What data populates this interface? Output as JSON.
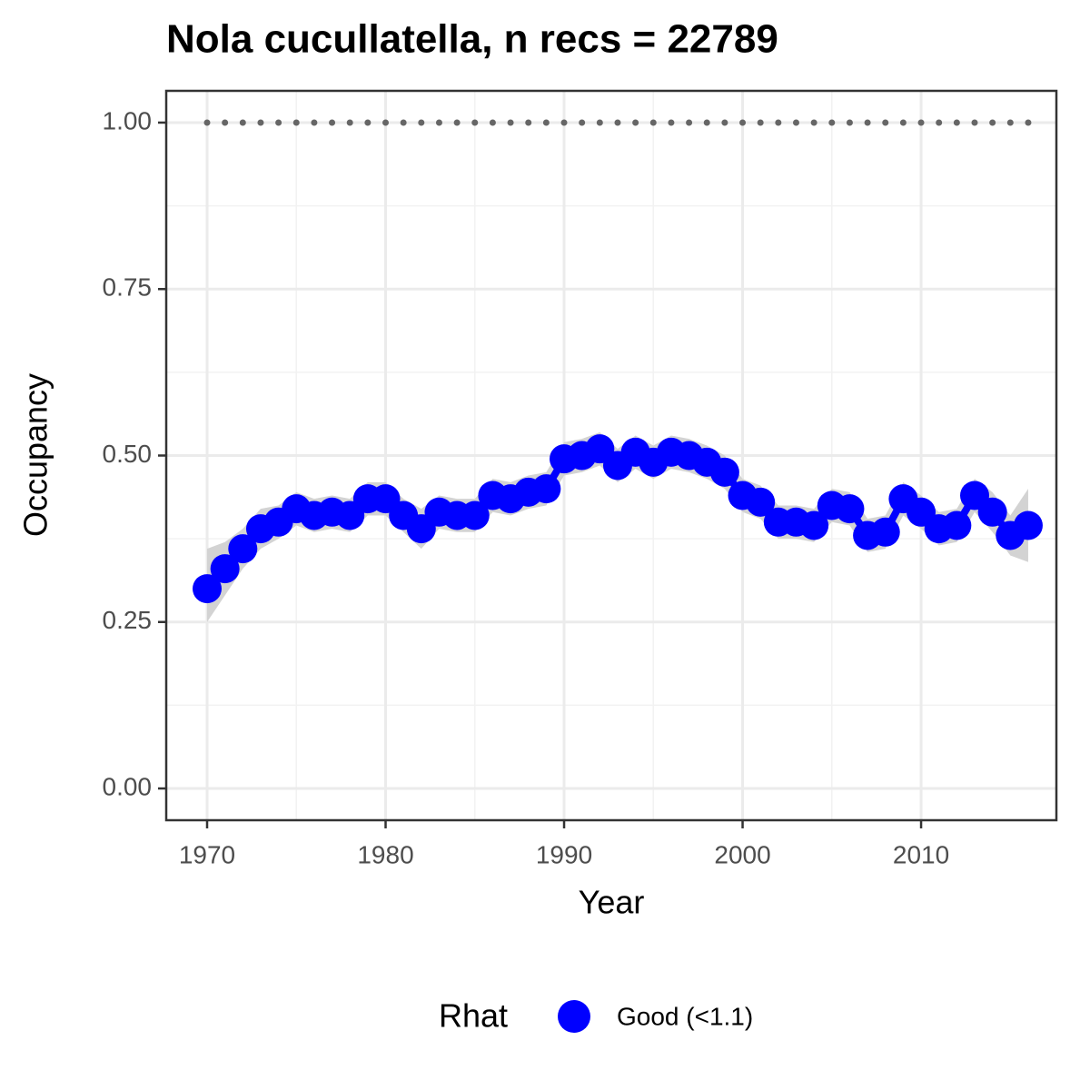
{
  "chart_data": {
    "type": "line",
    "title": "Nola cucullatella, n recs = 22789",
    "x_label": "Year",
    "y_label": "Occupancy",
    "x": [
      1970,
      1971,
      1972,
      1973,
      1974,
      1975,
      1976,
      1977,
      1978,
      1979,
      1980,
      1981,
      1982,
      1983,
      1984,
      1985,
      1986,
      1987,
      1988,
      1989,
      1990,
      1991,
      1992,
      1993,
      1994,
      1995,
      1996,
      1997,
      1998,
      1999,
      2000,
      2001,
      2002,
      2003,
      2004,
      2005,
      2006,
      2007,
      2008,
      2009,
      2010,
      2011,
      2012,
      2013,
      2014,
      2015,
      2016
    ],
    "series": [
      {
        "name": "Good (<1.1)",
        "color": "#0000ff",
        "values": [
          0.3,
          0.33,
          0.36,
          0.39,
          0.4,
          0.42,
          0.41,
          0.415,
          0.41,
          0.435,
          0.435,
          0.41,
          0.39,
          0.415,
          0.41,
          0.41,
          0.44,
          0.435,
          0.445,
          0.45,
          0.495,
          0.5,
          0.51,
          0.485,
          0.505,
          0.49,
          0.505,
          0.5,
          0.49,
          0.475,
          0.44,
          0.43,
          0.4,
          0.4,
          0.395,
          0.425,
          0.42,
          0.38,
          0.385,
          0.435,
          0.415,
          0.39,
          0.395,
          0.44,
          0.415,
          0.38,
          0.395
        ],
        "lower": [
          0.25,
          0.29,
          0.33,
          0.36,
          0.375,
          0.395,
          0.385,
          0.39,
          0.385,
          0.41,
          0.41,
          0.385,
          0.36,
          0.39,
          0.385,
          0.385,
          0.415,
          0.41,
          0.42,
          0.425,
          0.47,
          0.475,
          0.485,
          0.46,
          0.48,
          0.465,
          0.48,
          0.475,
          0.465,
          0.45,
          0.415,
          0.405,
          0.375,
          0.375,
          0.37,
          0.4,
          0.395,
          0.355,
          0.36,
          0.41,
          0.39,
          0.365,
          0.37,
          0.415,
          0.385,
          0.35,
          0.34
        ],
        "upper": [
          0.36,
          0.37,
          0.39,
          0.42,
          0.425,
          0.445,
          0.435,
          0.44,
          0.435,
          0.46,
          0.46,
          0.435,
          0.42,
          0.44,
          0.435,
          0.435,
          0.465,
          0.46,
          0.47,
          0.475,
          0.52,
          0.525,
          0.535,
          0.51,
          0.53,
          0.515,
          0.53,
          0.525,
          0.515,
          0.5,
          0.465,
          0.455,
          0.425,
          0.425,
          0.42,
          0.45,
          0.445,
          0.405,
          0.41,
          0.46,
          0.44,
          0.415,
          0.42,
          0.465,
          0.445,
          0.41,
          0.45
        ]
      }
    ],
    "ribbon_color": "#d3d3d3",
    "reference_line": {
      "y": 1,
      "color": "#666666"
    },
    "xlim": [
      1967.71,
      2017.58
    ],
    "xticks": [
      1970,
      1980,
      1990,
      2000,
      2010
    ],
    "ylim": [
      -0.0477,
      1.0477
    ],
    "yticks": [
      {
        "value": 0,
        "label": "0.00"
      },
      {
        "value": 0.25,
        "label": "0.25"
      },
      {
        "value": 0.5,
        "label": "0.50"
      },
      {
        "value": 0.75,
        "label": "0.75"
      },
      {
        "value": 1,
        "label": "1.00"
      }
    ],
    "grid": true,
    "minor_grid": true,
    "legend_title": "Rhat",
    "legend_position": "bottom"
  }
}
